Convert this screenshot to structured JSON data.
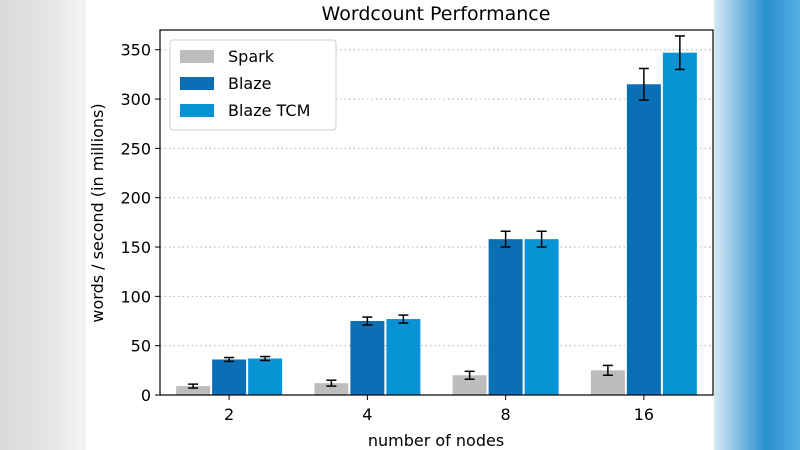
{
  "chart_data": {
    "type": "bar",
    "title": "Wordcount Performance",
    "xlabel": "number of nodes",
    "ylabel": "words / second (in millions)",
    "categories": [
      "2",
      "4",
      "8",
      "16"
    ],
    "ylim": [
      0,
      370
    ],
    "yticks": [
      0,
      50,
      100,
      150,
      200,
      250,
      300,
      350
    ],
    "grid": "horizontal dotted",
    "legend_position": "top-left",
    "series": [
      {
        "name": "Spark",
        "color": "#bdbdbd",
        "values": [
          9,
          12,
          20,
          25
        ],
        "errors": [
          2,
          3,
          4,
          5
        ]
      },
      {
        "name": "Blaze",
        "color": "#0a6fb5",
        "values": [
          36,
          75,
          158,
          315
        ],
        "errors": [
          2,
          4,
          8,
          16
        ]
      },
      {
        "name": "Blaze TCM",
        "color": "#0894d4",
        "values": [
          37,
          77,
          158,
          347
        ],
        "errors": [
          2,
          4,
          8,
          17
        ]
      }
    ]
  }
}
